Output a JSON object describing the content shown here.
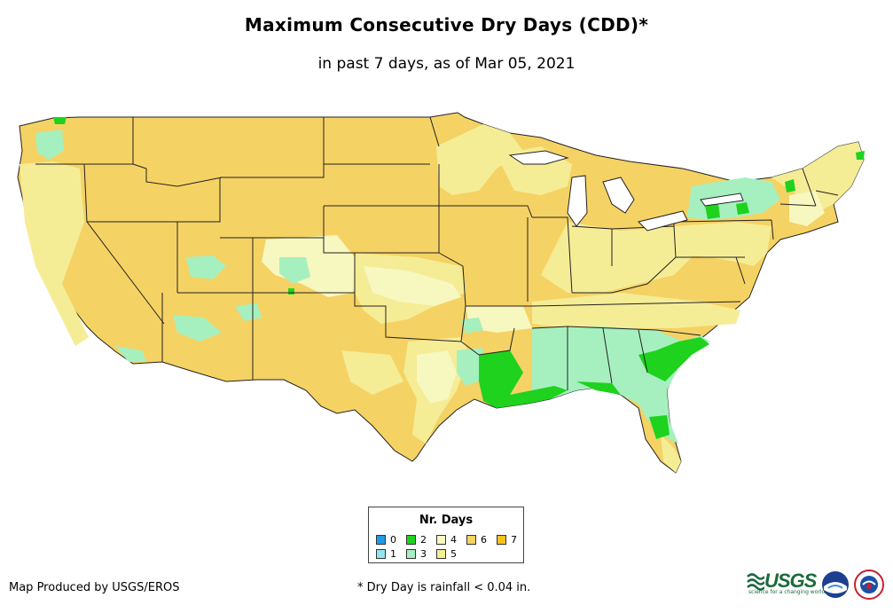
{
  "title": "Maximum Consecutive Dry Days (CDD)*",
  "subtitle": "in past 7 days, as of Mar 05, 2021",
  "legend": {
    "title": "Nr. Days",
    "items": [
      {
        "label": "0",
        "color": "#1f9ae6"
      },
      {
        "label": "1",
        "color": "#8fe6f0"
      },
      {
        "label": "2",
        "color": "#1ed21e"
      },
      {
        "label": "3",
        "color": "#a6f0c0"
      },
      {
        "label": "4",
        "color": "#f7f7c0"
      },
      {
        "label": "5",
        "color": "#f5ec96"
      },
      {
        "label": "6",
        "color": "#f5d264"
      },
      {
        "label": "7",
        "color": "#f5c21e"
      }
    ]
  },
  "credit": "Map Produced by USGS/EROS",
  "footnote": "* Dry Day is rainfall < 0.04 in.",
  "logos": {
    "usgs_text": "USGS",
    "usgs_tagline": "science for a changing world"
  },
  "colors": {
    "dominant_fill": "#f5d264",
    "border": "#222222"
  }
}
